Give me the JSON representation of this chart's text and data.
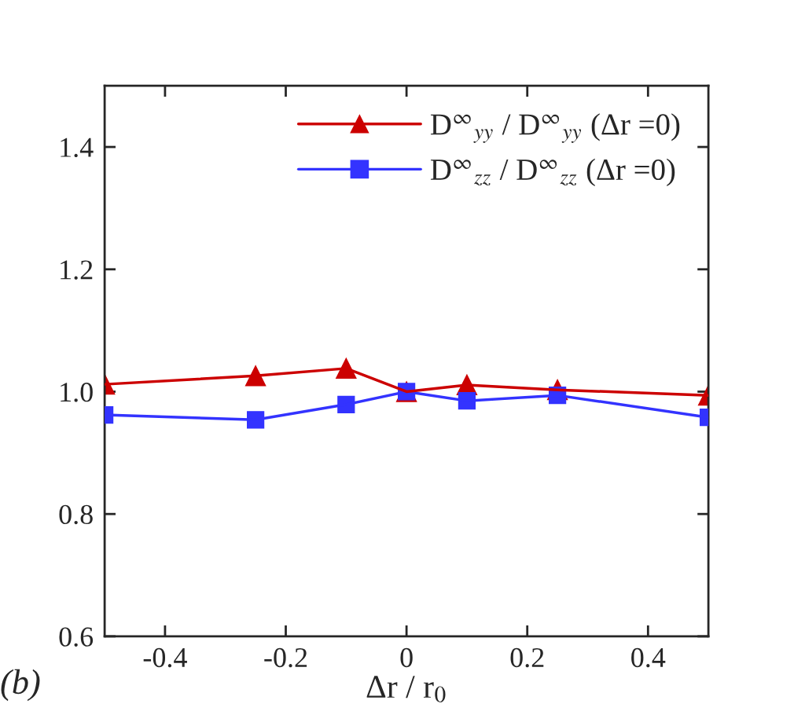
{
  "chart_data": {
    "type": "line",
    "xlabel": "Δr / r$_{0}$",
    "x": [
      -0.5,
      -0.25,
      -0.1,
      0,
      0.1,
      0.25,
      0.5
    ],
    "series": [
      {
        "name": "D$^{∞}$$_{yy}$ / D$^{∞}$$_{yy}$ (Δr =0)",
        "color": "#cc0000",
        "marker": "triangle",
        "values": [
          1.012,
          1.026,
          1.038,
          1.0,
          1.011,
          1.003,
          0.994
        ]
      },
      {
        "name": "D$^{∞}$$_{zz}$ / D$^{∞}$$_{zz}$ (Δr =0)",
        "color": "#3333ff",
        "marker": "square",
        "values": [
          0.962,
          0.954,
          0.979,
          1.0,
          0.985,
          0.994,
          0.958
        ]
      }
    ],
    "xlim": [
      -0.5,
      0.5
    ],
    "xticks": [
      -0.4,
      -0.2,
      0,
      0.2,
      0.4
    ],
    "ylim": [
      0.6,
      1.5
    ],
    "yticks": [
      0.6,
      0.8,
      {
        "value": 1.0,
        "label": "1.0"
      },
      1.2,
      1.4
    ],
    "grid": false,
    "legend": "top right",
    "line_style": "solid",
    "annotations": [
      "(b)"
    ]
  }
}
